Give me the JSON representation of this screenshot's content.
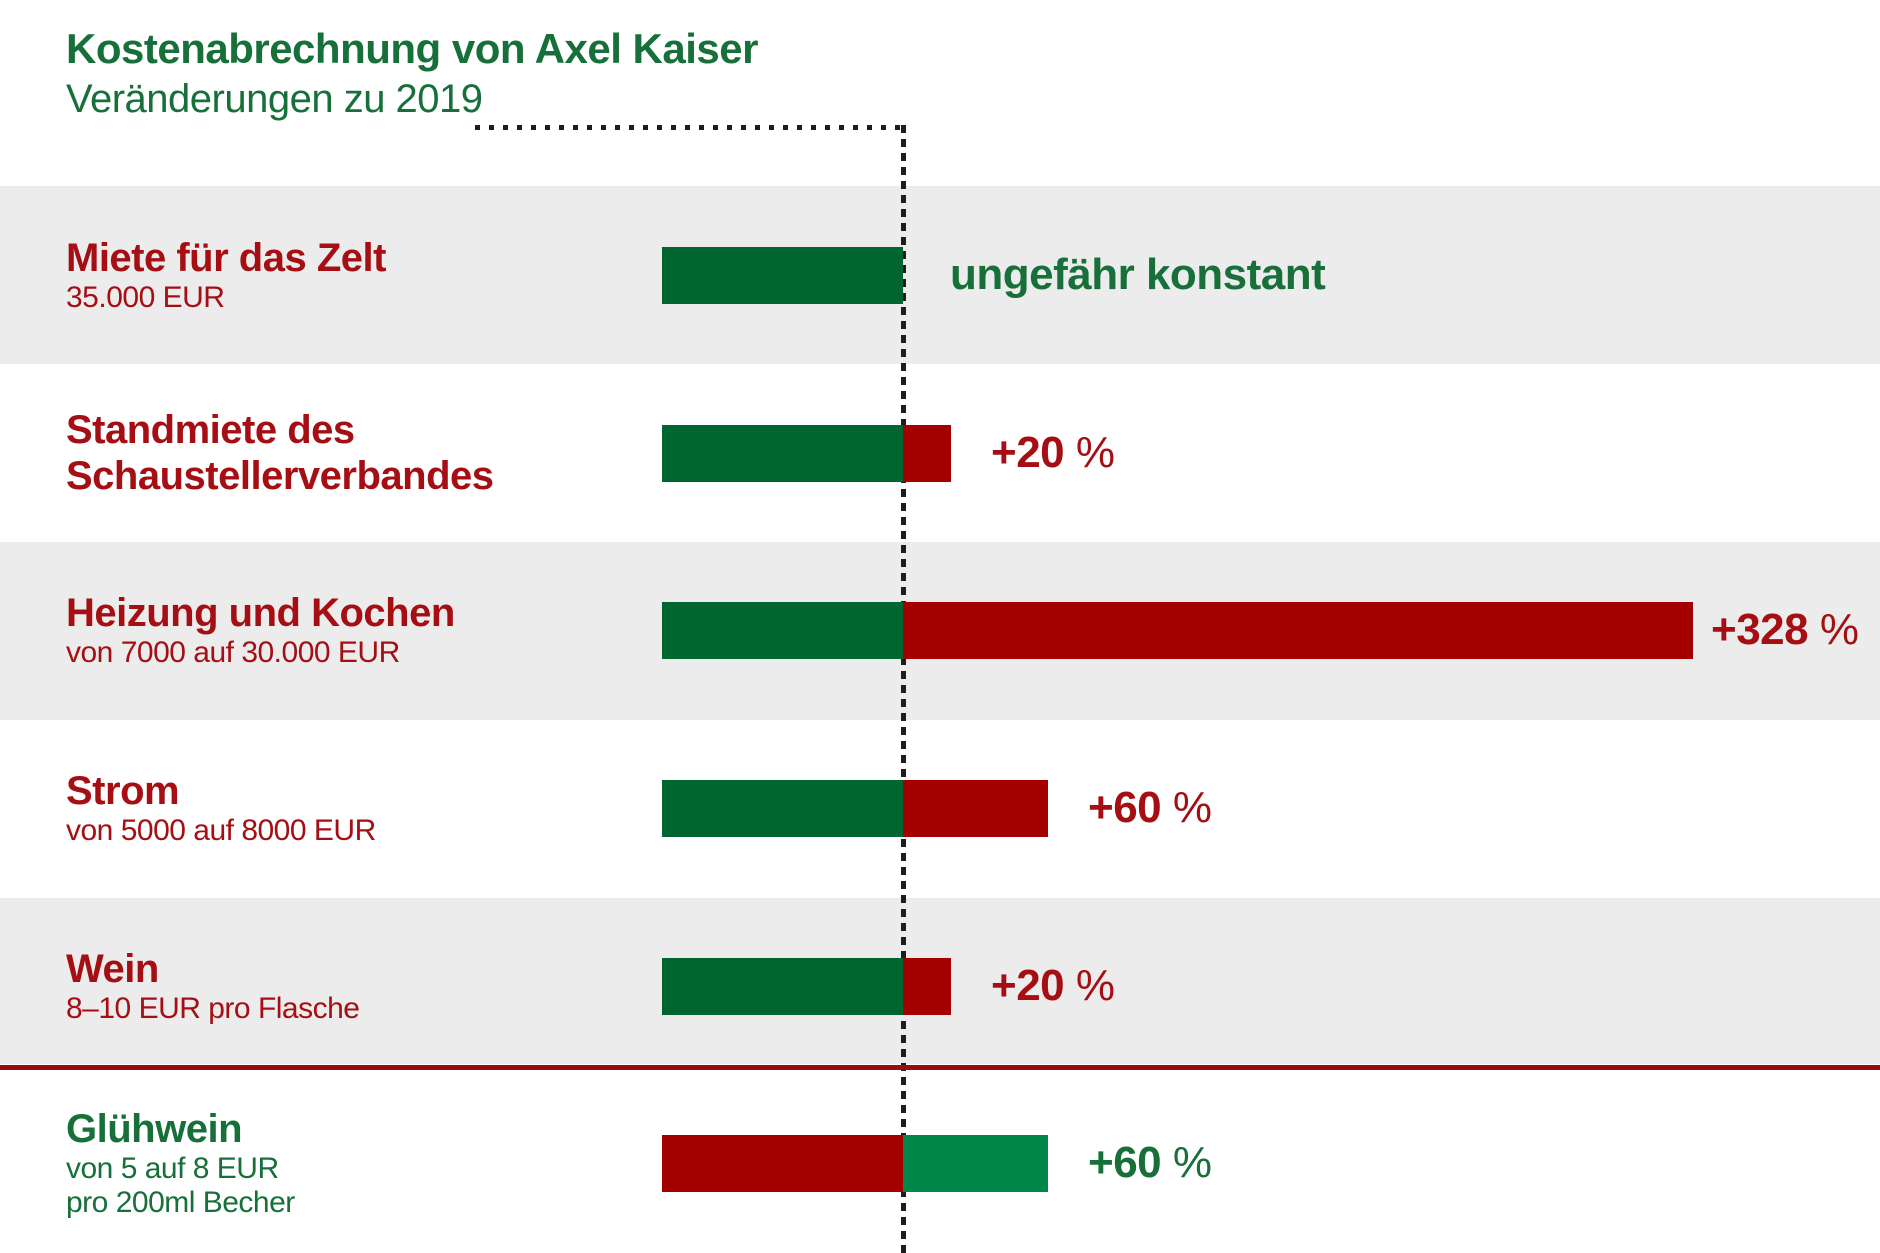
{
  "header": {
    "title": "Kostenabrechnung von Axel Kaiser",
    "subtitle": "Veränderungen zu 2019"
  },
  "colors": {
    "green_dark": "#006630",
    "green_bright": "#00884a",
    "red_bar": "#a50000",
    "red_text": "#a50f14",
    "green_text": "#176f3a",
    "band_gray": "#ececec",
    "divider_red": "#9b0b0e",
    "dash_black": "#1d1d1b"
  },
  "chart_data": {
    "type": "bar",
    "orientation": "horizontal",
    "title": "Kostenabrechnung von Axel Kaiser",
    "subtitle": "Veränderungen zu 2019",
    "baseline": {
      "year": "2019",
      "value_pct": 100,
      "marker": "dashed vertical line = 2019 cost level (100%)"
    },
    "rows": [
      {
        "category_lines": [
          "Miete für das Zelt"
        ],
        "detail_lines": [
          "35.000 EUR"
        ],
        "change_pct": 0,
        "annotation": "ungefähr konstant",
        "annotation_suffix": "",
        "band": "gray",
        "style": {
          "base": "green_dark",
          "ext": "red_bar",
          "text": "red_text",
          "annotation": "green_text"
        }
      },
      {
        "category_lines": [
          "Standmiete des",
          "Schaustellerverbandes"
        ],
        "detail_lines": [],
        "change_pct": 20,
        "annotation": "+20",
        "annotation_suffix": " %",
        "band": "white",
        "style": {
          "base": "green_dark",
          "ext": "red_bar",
          "text": "red_text",
          "annotation": "red_text"
        }
      },
      {
        "category_lines": [
          "Heizung und Kochen"
        ],
        "detail_lines": [
          "von 7000 auf 30.000 EUR"
        ],
        "change_pct": 328,
        "annotation": "+328",
        "annotation_suffix": " %",
        "band": "gray",
        "style": {
          "base": "green_dark",
          "ext": "red_bar",
          "text": "red_text",
          "annotation": "red_text"
        }
      },
      {
        "category_lines": [
          "Strom"
        ],
        "detail_lines": [
          "von 5000 auf 8000 EUR"
        ],
        "change_pct": 60,
        "annotation": "+60",
        "annotation_suffix": " %",
        "band": "white",
        "style": {
          "base": "green_dark",
          "ext": "red_bar",
          "text": "red_text",
          "annotation": "red_text"
        }
      },
      {
        "category_lines": [
          "Wein"
        ],
        "detail_lines": [
          "8–10 EUR pro Flasche"
        ],
        "change_pct": 20,
        "annotation": "+20",
        "annotation_suffix": " %",
        "band": "gray",
        "style": {
          "base": "green_dark",
          "ext": "red_bar",
          "text": "red_text",
          "annotation": "red_text"
        }
      },
      {
        "category_lines": [
          "Glühwein"
        ],
        "detail_lines": [
          "von 5 auf 8 EUR",
          "pro 200ml Becher"
        ],
        "change_pct": 60,
        "annotation": "+60",
        "annotation_suffix": " %",
        "band": "white",
        "style": {
          "base": "red_bar",
          "ext": "green_bright",
          "text": "green_text",
          "annotation": "green_text"
        }
      }
    ]
  }
}
